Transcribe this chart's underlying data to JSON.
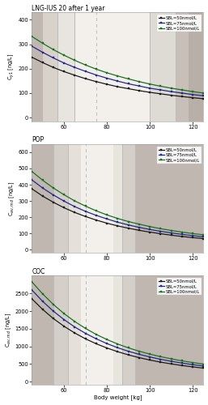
{
  "panels": [
    {
      "title": "LNG-IUS 20 after 1 year",
      "ylabel": "C$_{y1}$ [ng/L]",
      "ylim": [
        -15,
        430
      ],
      "yticks": [
        0,
        100,
        200,
        300,
        400
      ],
      "curves": {
        "SBL50_y": [
          247,
          225,
          205,
          188,
          173,
          159,
          147,
          136,
          126,
          118,
          110,
          103,
          97,
          91,
          86,
          81,
          77
        ],
        "SBL75_y": [
          292,
          267,
          244,
          223,
          205,
          189,
          174,
          161,
          149,
          138,
          129,
          120,
          113,
          106,
          100,
          94,
          89
        ],
        "SBL100_y": [
          332,
          304,
          278,
          255,
          234,
          215,
          198,
          183,
          170,
          158,
          147,
          137,
          128,
          120,
          113,
          106,
          100
        ]
      },
      "shade_regions": [
        {
          "xmin": 45,
          "xmax": 50,
          "color": "#c0b8b0"
        },
        {
          "xmin": 50,
          "xmax": 57,
          "color": "#d8d2cb"
        },
        {
          "xmin": 57,
          "xmax": 65,
          "color": "#e8e4de"
        },
        {
          "xmin": 65,
          "xmax": 100,
          "color": "#f3f0ec"
        },
        {
          "xmin": 100,
          "xmax": 112,
          "color": "#dedad4"
        },
        {
          "xmin": 112,
          "xmax": 118,
          "color": "#c8c0b8"
        },
        {
          "xmin": 118,
          "xmax": 125,
          "color": "#b8b0a8"
        }
      ],
      "vlines_solid": [
        57,
        65,
        100,
        112
      ],
      "vline_dashed": 75,
      "show_xlabel": false
    },
    {
      "title": "POP",
      "ylabel": "C$_{av,md}$ [ng/L]",
      "ylim": [
        -20,
        650
      ],
      "yticks": [
        0,
        100,
        200,
        300,
        400,
        500,
        600
      ],
      "curves": {
        "SBL50_y": [
          375,
          330,
          292,
          258,
          229,
          204,
          182,
          163,
          146,
          132,
          119,
          108,
          98,
          89,
          81,
          74,
          68
        ],
        "SBL75_y": [
          430,
          380,
          337,
          299,
          265,
          236,
          211,
          189,
          169,
          152,
          137,
          124,
          113,
          103,
          94,
          86,
          79
        ],
        "SBL100_y": [
          482,
          428,
          380,
          338,
          300,
          268,
          239,
          214,
          192,
          173,
          157,
          142,
          129,
          118,
          108,
          99,
          91
        ]
      },
      "shade_regions": [
        {
          "xmin": 45,
          "xmax": 55,
          "color": "#c0b8b0"
        },
        {
          "xmin": 55,
          "xmax": 62,
          "color": "#d5cfc9"
        },
        {
          "xmin": 62,
          "xmax": 68,
          "color": "#e5e0da"
        },
        {
          "xmin": 68,
          "xmax": 83,
          "color": "#f3f0ec"
        },
        {
          "xmin": 83,
          "xmax": 87,
          "color": "#e8e4de"
        },
        {
          "xmin": 87,
          "xmax": 93,
          "color": "#d5cfc9"
        },
        {
          "xmin": 93,
          "xmax": 125,
          "color": "#c0b8b0"
        }
      ],
      "vlines_solid": [
        55,
        62,
        87,
        93
      ],
      "vline_dashed": 70,
      "show_xlabel": false
    },
    {
      "title": "COC",
      "ylabel": "C$_{av,md}$ [ng/L]",
      "ylim": [
        -80,
        3000
      ],
      "yticks": [
        0,
        500,
        1000,
        1500,
        2000,
        2500
      ],
      "curves": {
        "SBL50_y": [
          2350,
          2050,
          1790,
          1570,
          1380,
          1215,
          1075,
          955,
          850,
          760,
          682,
          614,
          555,
          504,
          459,
          420,
          385
        ],
        "SBL75_y": [
          2600,
          2280,
          2000,
          1760,
          1550,
          1370,
          1215,
          1080,
          963,
          862,
          776,
          701,
          635,
          578,
          528,
          483,
          444
        ],
        "SBL100_y": [
          2830,
          2490,
          2190,
          1930,
          1705,
          1510,
          1340,
          1195,
          1068,
          959,
          864,
          782,
          710,
          647,
          591,
          542,
          499
        ]
      },
      "shade_regions": [
        {
          "xmin": 45,
          "xmax": 55,
          "color": "#c0b8b0"
        },
        {
          "xmin": 55,
          "xmax": 62,
          "color": "#d5cfc9"
        },
        {
          "xmin": 62,
          "xmax": 68,
          "color": "#e5e0da"
        },
        {
          "xmin": 68,
          "xmax": 83,
          "color": "#f3f0ec"
        },
        {
          "xmin": 83,
          "xmax": 87,
          "color": "#e8e4de"
        },
        {
          "xmin": 87,
          "xmax": 93,
          "color": "#d5cfc9"
        },
        {
          "xmin": 93,
          "xmax": 125,
          "color": "#c0b8b0"
        }
      ],
      "vlines_solid": [
        55,
        62,
        87,
        93
      ],
      "vline_dashed": 70,
      "show_xlabel": true
    }
  ],
  "x_start": 45,
  "x_end": 125,
  "x_step": 5,
  "xlabel": "Body weight [kg]",
  "xticks": [
    60,
    80,
    100,
    120
  ],
  "colors": {
    "SBL50_y": "#1a1a1a",
    "SBL75_y": "#22278a",
    "SBL100_y": "#1a7020"
  },
  "legend_labels": [
    "SBL=50nmol/L",
    "SBL=75nmol/L",
    "SBL=100nmol/L"
  ],
  "marker": "s",
  "markersize": 2.0,
  "linewidth": 0.9,
  "vline_color": "#bbbbbb",
  "vline_solid_lw": 0.7,
  "vline_dashed_lw": 0.7,
  "bg_color": "#ffffff",
  "panel_bg": "#f5f2ee"
}
